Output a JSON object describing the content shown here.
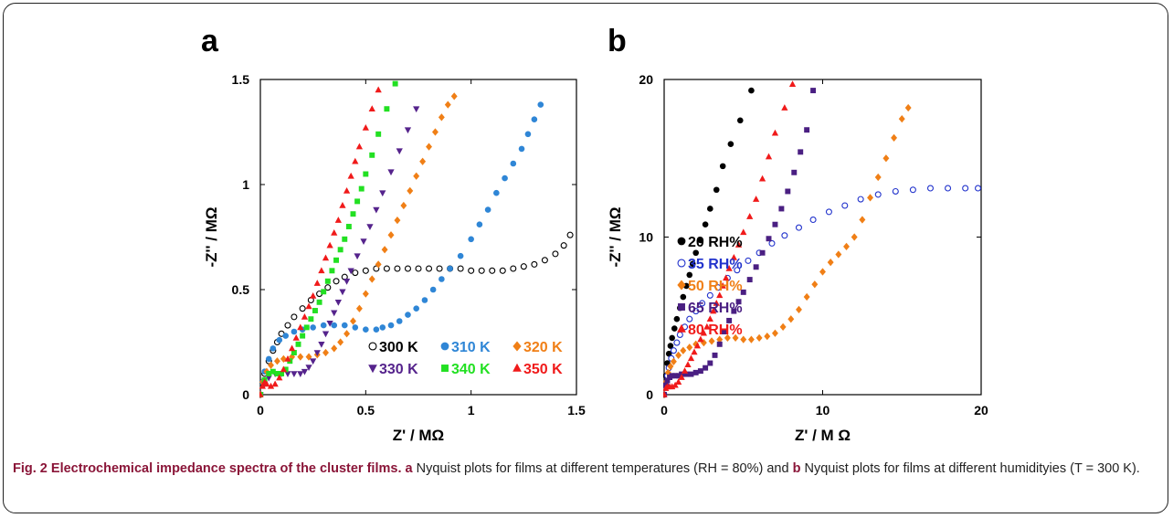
{
  "caption": {
    "lead": "Fig. 2 Electrochemical impedance spectra of the cluster films.",
    "a_label": "a",
    "a_text": " Nyquist plots for films at different temperatures (RH = 80%) and ",
    "b_label": "b",
    "b_text": " Nyquist plots for films at different humidityies (T = 300 K)."
  },
  "chart_data": [
    {
      "type": "scatter",
      "panel_label": "a",
      "xlabel": "Z' / MΩ",
      "ylabel": "-Z'' / MΩ",
      "xlim": [
        0,
        1.5
      ],
      "ylim": [
        0,
        1.5
      ],
      "xticks": [
        "0",
        "0.5",
        "1",
        "1.5"
      ],
      "yticks": [
        "0",
        "0.5",
        "1",
        "1.5"
      ],
      "legend_placement": "bottom-right",
      "series": [
        {
          "name": "300 K",
          "color": "#000000",
          "marker": "circle-open",
          "x": [
            0.0,
            0.01,
            0.02,
            0.04,
            0.06,
            0.08,
            0.1,
            0.13,
            0.16,
            0.2,
            0.24,
            0.28,
            0.32,
            0.36,
            0.4,
            0.45,
            0.5,
            0.55,
            0.6,
            0.65,
            0.7,
            0.75,
            0.8,
            0.85,
            0.9,
            0.95,
            1.0,
            1.05,
            1.1,
            1.15,
            1.2,
            1.25,
            1.3,
            1.35,
            1.4,
            1.44,
            1.47
          ],
          "y": [
            0.0,
            0.06,
            0.1,
            0.16,
            0.21,
            0.25,
            0.29,
            0.33,
            0.37,
            0.41,
            0.45,
            0.48,
            0.51,
            0.54,
            0.56,
            0.58,
            0.59,
            0.6,
            0.6,
            0.6,
            0.6,
            0.6,
            0.6,
            0.6,
            0.6,
            0.6,
            0.59,
            0.59,
            0.59,
            0.59,
            0.6,
            0.61,
            0.62,
            0.64,
            0.67,
            0.71,
            0.76
          ]
        },
        {
          "name": "310 K",
          "color": "#2f86d6",
          "marker": "circle",
          "x": [
            0.0,
            0.01,
            0.02,
            0.04,
            0.06,
            0.09,
            0.12,
            0.16,
            0.2,
            0.25,
            0.3,
            0.35,
            0.4,
            0.45,
            0.5,
            0.55,
            0.58,
            0.62,
            0.66,
            0.7,
            0.74,
            0.78,
            0.82,
            0.86,
            0.9,
            0.95,
            1.0,
            1.04,
            1.08,
            1.12,
            1.16,
            1.2,
            1.24,
            1.27,
            1.3,
            1.33
          ],
          "y": [
            0.0,
            0.06,
            0.11,
            0.17,
            0.22,
            0.26,
            0.28,
            0.3,
            0.31,
            0.32,
            0.33,
            0.33,
            0.33,
            0.32,
            0.31,
            0.31,
            0.32,
            0.33,
            0.35,
            0.38,
            0.41,
            0.45,
            0.5,
            0.55,
            0.6,
            0.66,
            0.74,
            0.81,
            0.88,
            0.96,
            1.03,
            1.1,
            1.17,
            1.24,
            1.31,
            1.38
          ]
        },
        {
          "name": "320 K",
          "color": "#f07f16",
          "marker": "diamond",
          "x": [
            0.0,
            0.01,
            0.03,
            0.05,
            0.08,
            0.11,
            0.15,
            0.19,
            0.23,
            0.27,
            0.31,
            0.35,
            0.38,
            0.41,
            0.44,
            0.47,
            0.5,
            0.53,
            0.56,
            0.59,
            0.62,
            0.65,
            0.68,
            0.71,
            0.74,
            0.77,
            0.8,
            0.83,
            0.86,
            0.89,
            0.92
          ],
          "y": [
            0.0,
            0.06,
            0.11,
            0.14,
            0.16,
            0.17,
            0.18,
            0.18,
            0.18,
            0.19,
            0.2,
            0.22,
            0.25,
            0.29,
            0.35,
            0.41,
            0.48,
            0.55,
            0.62,
            0.69,
            0.76,
            0.83,
            0.9,
            0.97,
            1.04,
            1.11,
            1.18,
            1.25,
            1.32,
            1.38,
            1.42
          ]
        },
        {
          "name": "330 K",
          "color": "#55238c",
          "marker": "triangle-down",
          "x": [
            0.0,
            0.02,
            0.04,
            0.07,
            0.1,
            0.13,
            0.16,
            0.19,
            0.21,
            0.23,
            0.25,
            0.27,
            0.29,
            0.31,
            0.33,
            0.35,
            0.37,
            0.39,
            0.41,
            0.43,
            0.46,
            0.49,
            0.52,
            0.55,
            0.58,
            0.62,
            0.66,
            0.7,
            0.74
          ],
          "y": [
            0.0,
            0.05,
            0.08,
            0.1,
            0.1,
            0.1,
            0.1,
            0.1,
            0.11,
            0.13,
            0.16,
            0.2,
            0.24,
            0.29,
            0.34,
            0.39,
            0.44,
            0.49,
            0.54,
            0.59,
            0.66,
            0.73,
            0.8,
            0.88,
            0.96,
            1.06,
            1.16,
            1.26,
            1.36
          ]
        },
        {
          "name": "340 K",
          "color": "#22e022",
          "marker": "square",
          "x": [
            0.0,
            0.02,
            0.04,
            0.06,
            0.08,
            0.1,
            0.12,
            0.14,
            0.16,
            0.18,
            0.2,
            0.22,
            0.24,
            0.26,
            0.28,
            0.3,
            0.32,
            0.34,
            0.36,
            0.38,
            0.4,
            0.42,
            0.44,
            0.46,
            0.48,
            0.5,
            0.53,
            0.56,
            0.6,
            0.64
          ],
          "y": [
            0.0,
            0.07,
            0.1,
            0.11,
            0.1,
            0.1,
            0.12,
            0.16,
            0.2,
            0.24,
            0.28,
            0.32,
            0.36,
            0.4,
            0.44,
            0.49,
            0.54,
            0.59,
            0.64,
            0.69,
            0.74,
            0.8,
            0.86,
            0.92,
            0.98,
            1.05,
            1.14,
            1.24,
            1.36,
            1.48
          ]
        },
        {
          "name": "350 K",
          "color": "#f01a1a",
          "marker": "triangle-up",
          "x": [
            0.0,
            0.01,
            0.02,
            0.03,
            0.05,
            0.07,
            0.09,
            0.11,
            0.13,
            0.15,
            0.17,
            0.19,
            0.21,
            0.23,
            0.25,
            0.27,
            0.29,
            0.31,
            0.33,
            0.35,
            0.37,
            0.39,
            0.41,
            0.43,
            0.45,
            0.47,
            0.5,
            0.53,
            0.56
          ],
          "y": [
            0.0,
            0.04,
            0.06,
            0.05,
            0.04,
            0.05,
            0.08,
            0.12,
            0.17,
            0.22,
            0.27,
            0.32,
            0.37,
            0.42,
            0.47,
            0.53,
            0.59,
            0.65,
            0.71,
            0.77,
            0.83,
            0.9,
            0.97,
            1.04,
            1.11,
            1.18,
            1.27,
            1.36,
            1.45
          ]
        }
      ]
    },
    {
      "type": "scatter",
      "panel_label": "b",
      "xlabel": "Z' / M Ω",
      "ylabel": "-Z'' / MΩ",
      "xlim": [
        0,
        20
      ],
      "ylim": [
        0,
        20
      ],
      "xticks": [
        "0",
        "10",
        "20"
      ],
      "yticks": [
        "0",
        "10",
        "20"
      ],
      "legend_placement": "right",
      "series": [
        {
          "name": "20 RH%",
          "color": "#000000",
          "marker": "circle",
          "x": [
            0.0,
            0.1,
            0.2,
            0.3,
            0.4,
            0.5,
            0.65,
            0.8,
            1.0,
            1.2,
            1.4,
            1.6,
            1.8,
            2.0,
            2.3,
            2.6,
            2.9,
            3.3,
            3.7,
            4.2,
            4.8,
            5.5
          ],
          "y": [
            0.0,
            1.2,
            2.0,
            2.6,
            3.1,
            3.6,
            4.2,
            4.8,
            5.5,
            6.2,
            6.9,
            7.6,
            8.3,
            9.0,
            9.8,
            10.8,
            11.8,
            13.0,
            14.5,
            15.9,
            17.4,
            19.3
          ]
        },
        {
          "name": "35 RH%",
          "color": "#2233cc",
          "marker": "circle-open",
          "x": [
            0.0,
            0.1,
            0.2,
            0.3,
            0.45,
            0.6,
            0.8,
            1.0,
            1.3,
            1.6,
            2.0,
            2.4,
            2.9,
            3.4,
            4.0,
            4.6,
            5.3,
            6.0,
            6.8,
            7.6,
            8.5,
            9.4,
            10.4,
            11.4,
            12.4,
            13.5,
            14.6,
            15.7,
            16.8,
            17.9,
            19.0,
            19.8
          ],
          "y": [
            0.0,
            0.6,
            1.2,
            1.7,
            2.3,
            2.8,
            3.3,
            3.8,
            4.3,
            4.8,
            5.3,
            5.8,
            6.3,
            6.8,
            7.4,
            7.9,
            8.5,
            9.0,
            9.6,
            10.1,
            10.6,
            11.1,
            11.6,
            12.0,
            12.4,
            12.7,
            12.9,
            13.0,
            13.1,
            13.1,
            13.1,
            13.1
          ]
        },
        {
          "name": "50 RH%",
          "color": "#f07f16",
          "marker": "diamond",
          "x": [
            0.0,
            0.1,
            0.25,
            0.4,
            0.6,
            0.9,
            1.2,
            1.6,
            2.0,
            2.5,
            3.0,
            3.5,
            4.0,
            4.5,
            5.0,
            5.5,
            6.0,
            6.5,
            7.0,
            7.5,
            8.0,
            8.5,
            9.0,
            9.5,
            10.0,
            10.5,
            11.0,
            11.5,
            12.0,
            12.5,
            13.0,
            13.5,
            14.0,
            14.5,
            15.0,
            15.4
          ],
          "y": [
            0.0,
            0.8,
            1.4,
            1.8,
            2.1,
            2.5,
            2.8,
            3.0,
            3.2,
            3.3,
            3.4,
            3.5,
            3.6,
            3.6,
            3.5,
            3.5,
            3.6,
            3.7,
            3.9,
            4.3,
            4.8,
            5.4,
            6.2,
            7.0,
            7.8,
            8.4,
            8.9,
            9.4,
            10.0,
            11.1,
            12.5,
            13.8,
            15.0,
            16.3,
            17.5,
            18.2
          ]
        },
        {
          "name": "65 RH%",
          "color": "#4a1f82",
          "marker": "square",
          "x": [
            0.0,
            0.1,
            0.2,
            0.35,
            0.5,
            0.7,
            0.9,
            1.1,
            1.4,
            1.7,
            2.0,
            2.3,
            2.6,
            2.9,
            3.2,
            3.5,
            3.8,
            4.1,
            4.4,
            4.7,
            5.0,
            5.4,
            5.8,
            6.2,
            6.6,
            7.0,
            7.4,
            7.8,
            8.2,
            8.6,
            9.0,
            9.4
          ],
          "y": [
            0.0,
            0.6,
            0.9,
            1.1,
            1.2,
            1.2,
            1.2,
            1.3,
            1.3,
            1.3,
            1.4,
            1.5,
            1.7,
            2.0,
            2.5,
            3.2,
            4.0,
            4.7,
            5.3,
            5.9,
            6.5,
            7.3,
            8.1,
            9.0,
            9.9,
            10.8,
            11.8,
            12.9,
            14.1,
            15.4,
            16.8,
            19.3
          ]
        },
        {
          "name": "80 RH%",
          "color": "#f01a1a",
          "marker": "triangle-up",
          "x": [
            0.0,
            0.1,
            0.2,
            0.35,
            0.5,
            0.7,
            0.9,
            1.1,
            1.3,
            1.5,
            1.7,
            1.9,
            2.1,
            2.3,
            2.5,
            2.7,
            2.9,
            3.1,
            3.3,
            3.5,
            3.7,
            3.9,
            4.1,
            4.4,
            4.7,
            5.0,
            5.4,
            5.8,
            6.2,
            6.6,
            7.0,
            7.6,
            8.1
          ],
          "y": [
            0.0,
            0.4,
            0.5,
            0.5,
            0.5,
            0.6,
            0.8,
            1.1,
            1.5,
            1.9,
            2.3,
            2.7,
            3.1,
            3.5,
            3.9,
            4.3,
            4.8,
            5.3,
            5.8,
            6.3,
            6.9,
            7.4,
            8.0,
            8.7,
            9.5,
            10.3,
            11.3,
            12.4,
            13.7,
            15.1,
            16.6,
            18.2,
            19.7
          ]
        }
      ]
    }
  ]
}
